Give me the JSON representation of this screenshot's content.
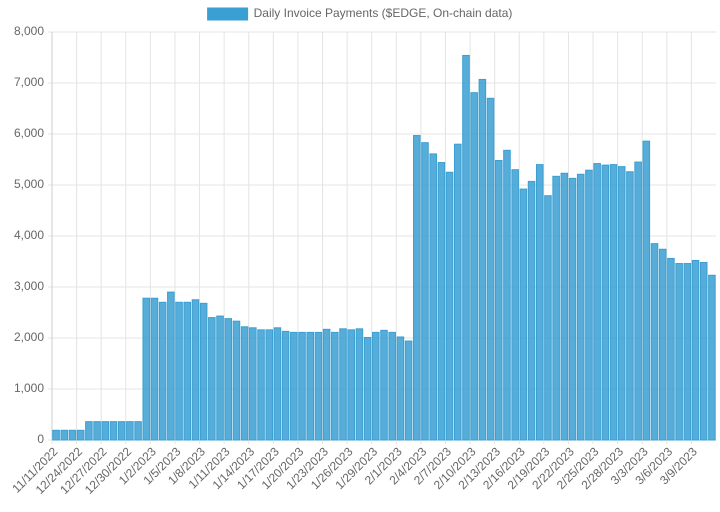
{
  "chart_data": {
    "type": "bar",
    "series": [
      {
        "name": "Daily Invoice Payments ($EDGE, On-chain data)",
        "color": "#3a9fd2",
        "values": [
          190,
          190,
          190,
          190,
          360,
          360,
          360,
          360,
          360,
          360,
          360,
          2780,
          2780,
          2700,
          2900,
          2700,
          2700,
          2750,
          2680,
          2400,
          2430,
          2380,
          2330,
          2220,
          2200,
          2160,
          2160,
          2200,
          2130,
          2110,
          2110,
          2110,
          2110,
          2170,
          2110,
          2180,
          2160,
          2180,
          2010,
          2110,
          2150,
          2110,
          2020,
          1940,
          5970,
          5830,
          5610,
          5440,
          5250,
          5800,
          7540,
          6810,
          7070,
          6700,
          5480,
          5680,
          5300,
          4920,
          5070,
          5400,
          4790,
          5170,
          5230,
          5130,
          5210,
          5290,
          5420,
          5390,
          5400,
          5360,
          5260,
          5450,
          5860,
          3850,
          3740,
          3560,
          3460,
          3460,
          3520,
          3480,
          3230
        ]
      }
    ],
    "categories": [
      "11/11/2022",
      null,
      null,
      "12/24/2022",
      null,
      null,
      "12/27/2022",
      null,
      null,
      "12/30/2022",
      null,
      null,
      "1/2/2023",
      null,
      null,
      "1/5/2023",
      null,
      null,
      "1/8/2023",
      null,
      null,
      "1/11/2023",
      null,
      null,
      "1/14/2023",
      null,
      null,
      "1/17/2023",
      null,
      null,
      "1/20/2023",
      null,
      null,
      "1/23/2023",
      null,
      null,
      "1/26/2023",
      null,
      null,
      "1/29/2023",
      null,
      null,
      "2/1/2023",
      null,
      null,
      "2/4/2023",
      null,
      null,
      "2/7/2023",
      null,
      null,
      "2/10/2023",
      null,
      null,
      "2/13/2023",
      null,
      null,
      "2/16/2023",
      null,
      null,
      "2/19/2023",
      null,
      null,
      "2/22/2023",
      null,
      null,
      "2/25/2023",
      null,
      null,
      "2/28/2023",
      null,
      null,
      "3/3/2023",
      null,
      null,
      "3/6/2023",
      null,
      null,
      "3/9/2023",
      null,
      null
    ],
    "ylim": [
      0,
      8000
    ],
    "yticks": [
      0,
      {
        "value": 1000,
        "label": "1,000"
      },
      {
        "value": 2000,
        "label": "2,000"
      },
      {
        "value": 3000,
        "label": "3,000"
      },
      {
        "value": 4000,
        "label": "4,000"
      },
      {
        "value": 5000,
        "label": "5,000"
      },
      {
        "value": 6000,
        "label": "6,000"
      },
      {
        "value": 7000,
        "label": "7,000"
      },
      {
        "value": 8000,
        "label": "8,000"
      }
    ],
    "grid": true,
    "legend": "top"
  }
}
